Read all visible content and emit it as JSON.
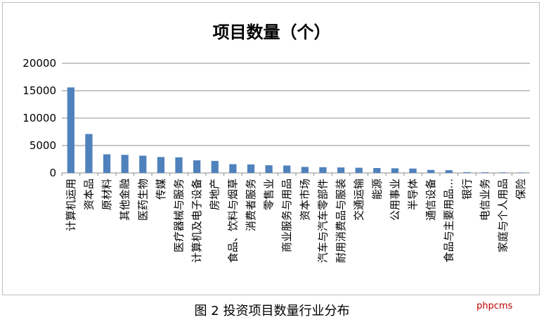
{
  "chart_data": {
    "type": "bar",
    "title": "项目数量（个）",
    "categories": [
      "计算机运用",
      "资本品",
      "原材料",
      "其他金融",
      "医药生物",
      "传媒",
      "医疗器械与服务",
      "计算机及电子设备",
      "房地产",
      "食品、饮料与烟草",
      "消费者服务",
      "零售业",
      "商业服务与用品",
      "资本市场",
      "汽车与汽车零部件",
      "耐用消费品与服装",
      "交通运输",
      "能源",
      "公用事业",
      "半导体",
      "通信设备",
      "食品与主要用品...",
      "银行",
      "电信业务",
      "家庭与个人用品",
      "保险"
    ],
    "values": [
      15600,
      7100,
      3400,
      3300,
      3150,
      2900,
      2850,
      2300,
      2200,
      1600,
      1550,
      1400,
      1350,
      1100,
      1050,
      1000,
      950,
      900,
      850,
      800,
      550,
      500,
      150,
      120,
      100,
      80
    ],
    "ylim": [
      0,
      20000
    ],
    "yticks": [
      "0",
      "5000",
      "10000",
      "15000",
      "20000"
    ],
    "grid": true,
    "bar_color": "#4f81bd"
  },
  "caption": "图 2  投资项目数量行业分布",
  "watermark": "phpcms"
}
